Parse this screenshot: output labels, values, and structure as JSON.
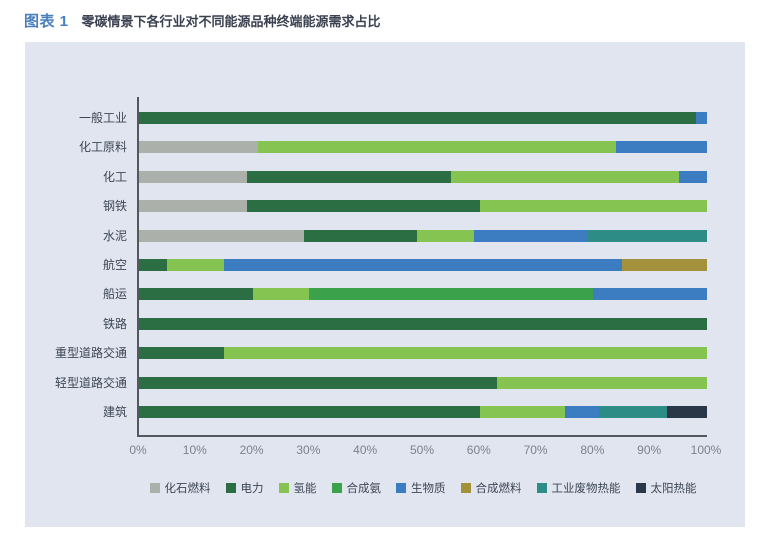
{
  "header": {
    "figure_label": "图表 1",
    "figure_title": "零碳情景下各行业对不同能源品种终端能源需求占比"
  },
  "colors": {
    "page_bg": "#ffffff",
    "card_bg": "#e0e5ef",
    "figure_label": "#4a7fbd",
    "figure_title": "#3a4150",
    "axis_line": "#54585e",
    "tick_text": "#7b828e",
    "category_text": "#3d4656",
    "legend_text": "#3d4656"
  },
  "chart_data": {
    "type": "bar",
    "orientation": "horizontal",
    "stacked": true,
    "unit": "percent_share",
    "title": "零碳情景下各行业对不同能源品种终端能源需求占比",
    "xlabel": "",
    "ylabel": "",
    "xlim": [
      0,
      100
    ],
    "grid": false,
    "legend_position": "bottom",
    "x_tick_labels": [
      "0%",
      "10%",
      "20%",
      "30%",
      "40%",
      "50%",
      "60%",
      "70%",
      "80%",
      "90%",
      "100%"
    ],
    "categories": [
      "一般工业",
      "化工原料",
      "化工",
      "钢铁",
      "水泥",
      "航空",
      "船运",
      "铁路",
      "重型道路交通",
      "轻型道路交通",
      "建筑"
    ],
    "series": [
      {
        "name": "化石燃料",
        "color": "#abb0aa",
        "values": [
          0,
          21,
          19,
          19,
          29,
          0,
          0,
          0,
          0,
          0,
          0
        ]
      },
      {
        "name": "电力",
        "color": "#2b6e44",
        "values": [
          98,
          0,
          36,
          41,
          20,
          5,
          20,
          100,
          15,
          63,
          60
        ]
      },
      {
        "name": "氢能",
        "color": "#85c451",
        "values": [
          0,
          63,
          40,
          40,
          10,
          10,
          10,
          0,
          85,
          37,
          15
        ]
      },
      {
        "name": "合成氨",
        "color": "#3ba14b",
        "values": [
          0,
          0,
          0,
          0,
          0,
          0,
          50,
          0,
          0,
          0,
          0
        ]
      },
      {
        "name": "生物质",
        "color": "#3c7cc1",
        "values": [
          2,
          16,
          5,
          0,
          20,
          70,
          20,
          0,
          0,
          0,
          6
        ]
      },
      {
        "name": "合成燃料",
        "color": "#a3913b",
        "values": [
          0,
          0,
          0,
          0,
          0,
          15,
          0,
          0,
          0,
          0,
          0
        ]
      },
      {
        "name": "工业废物热能",
        "color": "#2e8c86",
        "values": [
          0,
          0,
          0,
          0,
          21,
          0,
          0,
          0,
          0,
          0,
          12
        ]
      },
      {
        "name": "太阳热能",
        "color": "#2a3749",
        "values": [
          0,
          0,
          0,
          0,
          0,
          0,
          0,
          0,
          0,
          0,
          7
        ]
      }
    ]
  }
}
